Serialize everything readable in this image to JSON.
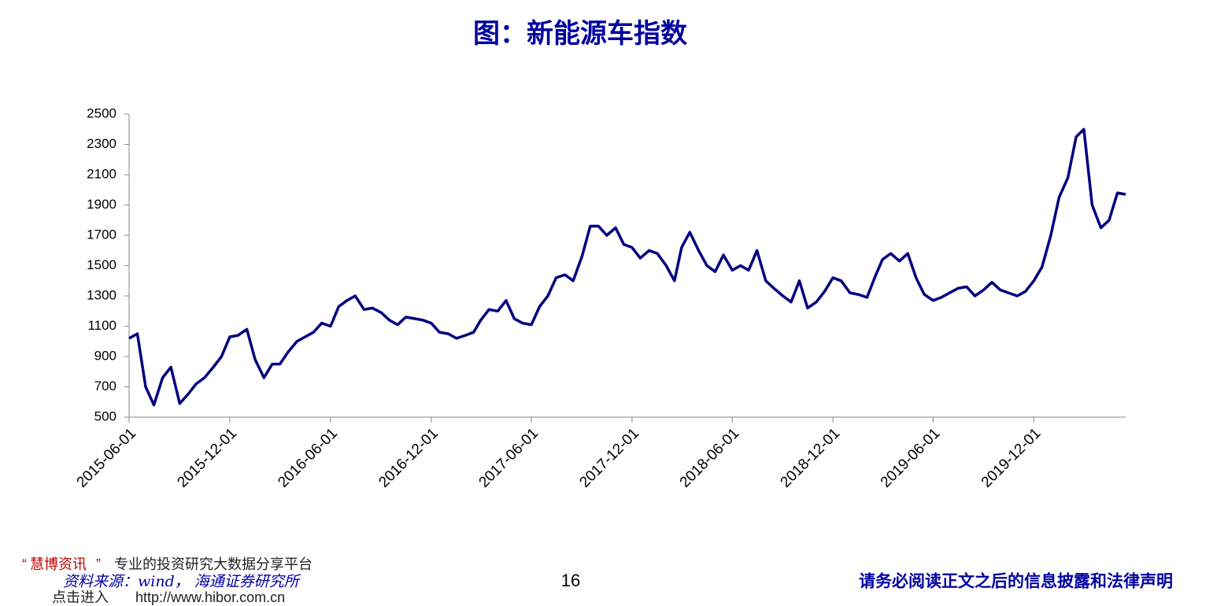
{
  "chart_data": {
    "type": "line",
    "title": "图：新能源车指数",
    "x": [
      "2015-06-01",
      "2015-06-16",
      "2015-07-01",
      "2015-07-16",
      "2015-08-01",
      "2015-08-16",
      "2015-09-01",
      "2015-09-16",
      "2015-10-01",
      "2015-10-16",
      "2015-11-01",
      "2015-11-16",
      "2015-12-01",
      "2015-12-16",
      "2016-01-01",
      "2016-01-16",
      "2016-02-01",
      "2016-02-16",
      "2016-03-01",
      "2016-03-16",
      "2016-04-01",
      "2016-04-16",
      "2016-05-01",
      "2016-05-16",
      "2016-06-01",
      "2016-06-16",
      "2016-07-01",
      "2016-07-16",
      "2016-08-01",
      "2016-08-16",
      "2016-09-01",
      "2016-09-16",
      "2016-10-01",
      "2016-10-16",
      "2016-11-01",
      "2016-11-16",
      "2016-12-01",
      "2016-12-16",
      "2017-01-01",
      "2017-01-16",
      "2017-02-01",
      "2017-02-16",
      "2017-03-01",
      "2017-03-16",
      "2017-04-01",
      "2017-04-16",
      "2017-05-01",
      "2017-05-16",
      "2017-06-01",
      "2017-06-16",
      "2017-07-01",
      "2017-07-16",
      "2017-08-01",
      "2017-08-16",
      "2017-09-01",
      "2017-09-16",
      "2017-10-01",
      "2017-10-16",
      "2017-11-01",
      "2017-11-16",
      "2017-12-01",
      "2017-12-16",
      "2018-01-01",
      "2018-01-16",
      "2018-02-01",
      "2018-02-16",
      "2018-03-01",
      "2018-03-16",
      "2018-04-01",
      "2018-04-16",
      "2018-05-01",
      "2018-05-16",
      "2018-06-01",
      "2018-06-16",
      "2018-07-01",
      "2018-07-16",
      "2018-08-01",
      "2018-08-16",
      "2018-09-01",
      "2018-09-16",
      "2018-10-01",
      "2018-10-16",
      "2018-11-01",
      "2018-11-16",
      "2018-12-01",
      "2018-12-16",
      "2019-01-01",
      "2019-01-16",
      "2019-02-01",
      "2019-02-16",
      "2019-03-01",
      "2019-03-16",
      "2019-04-01",
      "2019-04-16",
      "2019-05-01",
      "2019-05-16",
      "2019-06-01",
      "2019-06-16",
      "2019-07-01",
      "2019-07-16",
      "2019-08-01",
      "2019-08-16",
      "2019-09-01",
      "2019-09-16",
      "2019-10-01",
      "2019-10-16",
      "2019-11-01",
      "2019-11-16",
      "2019-12-01",
      "2019-12-16",
      "2020-01-01",
      "2020-01-16",
      "2020-02-01",
      "2020-02-16",
      "2020-03-01",
      "2020-03-16",
      "2020-04-01",
      "2020-04-16",
      "2020-05-01",
      "2020-05-16"
    ],
    "series": [
      {
        "name": "新能源车指数",
        "color": "#000080",
        "values": [
          1020,
          1050,
          700,
          580,
          760,
          830,
          590,
          650,
          720,
          760,
          830,
          900,
          1030,
          1040,
          1080,
          880,
          760,
          850,
          850,
          930,
          1000,
          1030,
          1060,
          1120,
          1100,
          1230,
          1270,
          1300,
          1210,
          1220,
          1190,
          1140,
          1110,
          1160,
          1150,
          1140,
          1120,
          1060,
          1050,
          1020,
          1040,
          1060,
          1140,
          1210,
          1200,
          1270,
          1150,
          1120,
          1110,
          1230,
          1300,
          1420,
          1440,
          1400,
          1560,
          1760,
          1760,
          1700,
          1750,
          1640,
          1620,
          1550,
          1600,
          1580,
          1500,
          1400,
          1620,
          1720,
          1600,
          1500,
          1460,
          1570,
          1470,
          1500,
          1470,
          1600,
          1400,
          1350,
          1300,
          1260,
          1400,
          1220,
          1260,
          1330,
          1420,
          1400,
          1320,
          1310,
          1290,
          1430,
          1540,
          1580,
          1530,
          1580,
          1420,
          1310,
          1270,
          1290,
          1320,
          1350,
          1360,
          1300,
          1340,
          1390,
          1340,
          1320,
          1300,
          1330,
          1400,
          1490,
          1700,
          1950,
          2080,
          2350,
          2400,
          1900,
          1750,
          1800,
          1980,
          1970
        ]
      }
    ],
    "xticks": [
      "2015-06-01",
      "2015-12-01",
      "2016-06-01",
      "2016-12-01",
      "2017-06-01",
      "2017-12-01",
      "2018-06-01",
      "2018-12-01",
      "2019-06-01",
      "2019-12-01"
    ],
    "ylim": [
      500,
      2500
    ],
    "yticks": [
      500,
      700,
      900,
      1100,
      1300,
      1500,
      1700,
      1900,
      2100,
      2300,
      2500
    ]
  },
  "watermark": {
    "quote_open": "“",
    "brand": "慧博资讯",
    "quote_close": "”",
    "slogan": "专业的投资研究大数据分享平台",
    "enter": "点击进入",
    "url": "http://www.hibor.com.cn"
  },
  "source": "资料来源：wind， 海通证券研究所",
  "page_number": "16",
  "disclaimer": "请务必阅读正文之后的信息披露和法律声明"
}
